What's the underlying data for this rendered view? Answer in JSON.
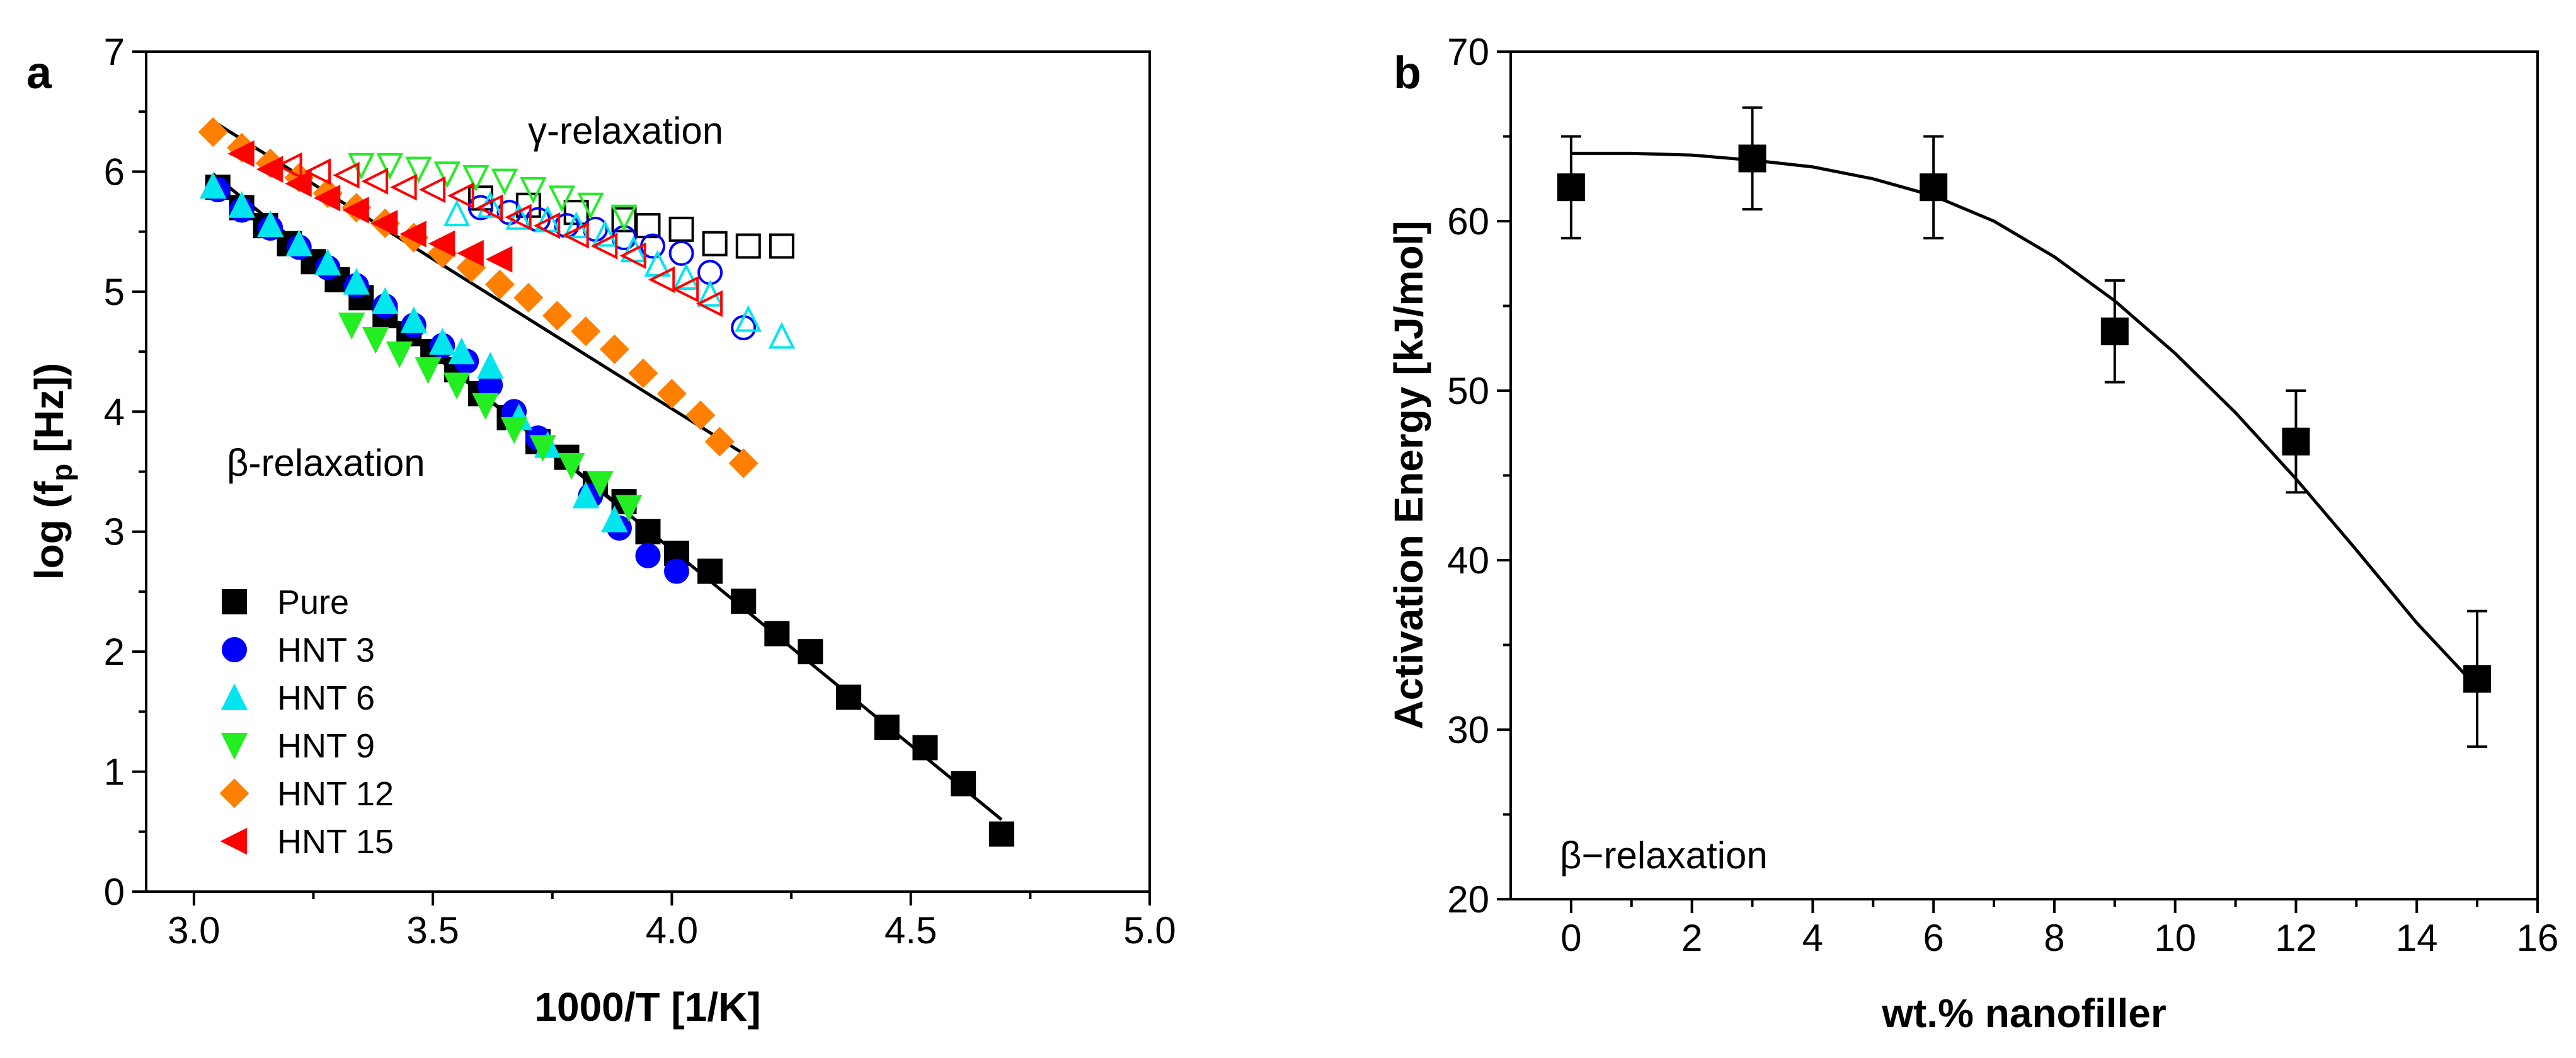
{
  "chart_data": [
    {
      "type": "scatter",
      "panel_label": "a",
      "xlabel": "1000/T [1/K]",
      "ylabel_prefix": "log (f",
      "ylabel_sub": "p",
      "ylabel_suffix": " [Hz])",
      "xlim": [
        2.9,
        5.0
      ],
      "ylim": [
        0,
        7
      ],
      "xticks": [
        "3.0",
        "3.5",
        "4.0",
        "4.5",
        "5.0"
      ],
      "yticks": [
        "0",
        "1",
        "2",
        "3",
        "4",
        "5",
        "6",
        "7"
      ],
      "annotations": {
        "gamma": "γ-relaxation",
        "beta": "β-relaxation"
      },
      "series": [
        {
          "name": "Pure",
          "color": "#000000",
          "marker": "square",
          "beta": [
            [
              3.05,
              5.87
            ],
            [
              3.1,
              5.7
            ],
            [
              3.15,
              5.55
            ],
            [
              3.2,
              5.4
            ],
            [
              3.25,
              5.25
            ],
            [
              3.3,
              5.1
            ],
            [
              3.35,
              4.95
            ],
            [
              3.4,
              4.8
            ],
            [
              3.45,
              4.65
            ],
            [
              3.5,
              4.5
            ],
            [
              3.55,
              4.35
            ],
            [
              3.6,
              4.15
            ],
            [
              3.66,
              3.95
            ],
            [
              3.72,
              3.75
            ],
            [
              3.78,
              3.62
            ],
            [
              3.84,
              3.4
            ],
            [
              3.9,
              3.25
            ],
            [
              3.95,
              3.0
            ],
            [
              4.01,
              2.82
            ],
            [
              4.08,
              2.67
            ],
            [
              4.15,
              2.42
            ],
            [
              4.22,
              2.15
            ],
            [
              4.29,
              2.0
            ],
            [
              4.37,
              1.62
            ],
            [
              4.45,
              1.37
            ],
            [
              4.53,
              1.2
            ],
            [
              4.61,
              0.9
            ],
            [
              4.69,
              0.48
            ]
          ],
          "gamma": [
            [
              3.6,
              5.78
            ],
            [
              3.7,
              5.72
            ],
            [
              3.8,
              5.66
            ],
            [
              3.9,
              5.6
            ],
            [
              3.95,
              5.55
            ],
            [
              4.02,
              5.52
            ],
            [
              4.09,
              5.4
            ],
            [
              4.16,
              5.38
            ],
            [
              4.23,
              5.38
            ]
          ]
        },
        {
          "name": "HNT 3",
          "color": "#0000ff",
          "marker": "circle",
          "beta": [
            [
              3.05,
              5.85
            ],
            [
              3.1,
              5.68
            ],
            [
              3.16,
              5.53
            ],
            [
              3.22,
              5.37
            ],
            [
              3.28,
              5.2
            ],
            [
              3.34,
              5.05
            ],
            [
              3.4,
              4.88
            ],
            [
              3.46,
              4.72
            ],
            [
              3.52,
              4.55
            ],
            [
              3.57,
              4.42
            ],
            [
              3.62,
              4.22
            ],
            [
              3.67,
              4.0
            ],
            [
              3.72,
              3.78
            ],
            [
              3.83,
              3.3
            ],
            [
              3.89,
              3.03
            ],
            [
              3.95,
              2.8
            ],
            [
              4.01,
              2.67
            ]
          ],
          "gamma": [
            [
              3.6,
              5.7
            ],
            [
              3.66,
              5.66
            ],
            [
              3.72,
              5.6
            ],
            [
              3.78,
              5.55
            ],
            [
              3.84,
              5.52
            ],
            [
              3.9,
              5.45
            ],
            [
              3.96,
              5.38
            ],
            [
              4.02,
              5.32
            ],
            [
              4.08,
              5.16
            ],
            [
              4.15,
              4.7
            ]
          ]
        },
        {
          "name": "HNT 6",
          "color": "#00e5ee",
          "marker": "triangle-up",
          "beta": [
            [
              3.04,
              5.88
            ],
            [
              3.1,
              5.72
            ],
            [
              3.16,
              5.56
            ],
            [
              3.22,
              5.4
            ],
            [
              3.28,
              5.24
            ],
            [
              3.34,
              5.08
            ],
            [
              3.4,
              4.92
            ],
            [
              3.46,
              4.76
            ],
            [
              3.52,
              4.58
            ],
            [
              3.56,
              4.5
            ],
            [
              3.62,
              4.38
            ],
            [
              3.68,
              3.95
            ],
            [
              3.74,
              3.72
            ],
            [
              3.82,
              3.3
            ],
            [
              3.88,
              3.1
            ]
          ],
          "gamma": [
            [
              3.55,
              5.65
            ],
            [
              3.62,
              5.72
            ],
            [
              3.68,
              5.62
            ],
            [
              3.74,
              5.6
            ],
            [
              3.8,
              5.55
            ],
            [
              3.86,
              5.48
            ],
            [
              3.92,
              5.35
            ],
            [
              3.97,
              5.23
            ],
            [
              4.03,
              5.12
            ],
            [
              4.08,
              4.98
            ],
            [
              4.16,
              4.77
            ],
            [
              4.23,
              4.63
            ]
          ]
        },
        {
          "name": "HNT 9",
          "color": "#22ee22",
          "marker": "triangle-down",
          "beta": [
            [
              3.33,
              4.72
            ],
            [
              3.38,
              4.6
            ],
            [
              3.43,
              4.48
            ],
            [
              3.49,
              4.35
            ],
            [
              3.55,
              4.22
            ],
            [
              3.61,
              4.05
            ],
            [
              3.67,
              3.85
            ],
            [
              3.73,
              3.7
            ],
            [
              3.79,
              3.55
            ],
            [
              3.85,
              3.4
            ],
            [
              3.91,
              3.2
            ]
          ],
          "gamma": [
            [
              3.35,
              6.05
            ],
            [
              3.41,
              6.05
            ],
            [
              3.47,
              6.02
            ],
            [
              3.53,
              5.98
            ],
            [
              3.59,
              5.95
            ],
            [
              3.65,
              5.92
            ],
            [
              3.71,
              5.85
            ],
            [
              3.77,
              5.78
            ],
            [
              3.83,
              5.72
            ],
            [
              3.9,
              5.62
            ]
          ]
        },
        {
          "name": "HNT 12",
          "color": "#ff7f00",
          "marker": "diamond",
          "beta": [
            [
              3.04,
              6.33
            ],
            [
              3.1,
              6.2
            ],
            [
              3.16,
              6.07
            ],
            [
              3.22,
              5.95
            ],
            [
              3.28,
              5.82
            ],
            [
              3.34,
              5.7
            ],
            [
              3.4,
              5.57
            ],
            [
              3.46,
              5.45
            ],
            [
              3.52,
              5.32
            ],
            [
              3.58,
              5.2
            ],
            [
              3.64,
              5.06
            ],
            [
              3.7,
              4.95
            ],
            [
              3.76,
              4.8
            ],
            [
              3.82,
              4.67
            ],
            [
              3.88,
              4.52
            ],
            [
              3.94,
              4.32
            ],
            [
              4.0,
              4.15
            ],
            [
              4.06,
              3.97
            ],
            [
              4.1,
              3.75
            ],
            [
              4.15,
              3.57
            ]
          ],
          "gamma": []
        },
        {
          "name": "HNT 15",
          "color": "#ff0000",
          "marker": "triangle-left",
          "beta": [
            [
              3.1,
              6.15
            ],
            [
              3.16,
              6.02
            ],
            [
              3.22,
              5.9
            ],
            [
              3.28,
              5.78
            ],
            [
              3.34,
              5.68
            ],
            [
              3.4,
              5.57
            ],
            [
              3.46,
              5.48
            ],
            [
              3.52,
              5.4
            ],
            [
              3.58,
              5.32
            ],
            [
              3.64,
              5.27
            ]
          ],
          "gamma": [
            [
              3.2,
              6.05
            ],
            [
              3.26,
              6.0
            ],
            [
              3.32,
              5.97
            ],
            [
              3.38,
              5.92
            ],
            [
              3.44,
              5.87
            ],
            [
              3.5,
              5.85
            ],
            [
              3.56,
              5.8
            ],
            [
              3.62,
              5.7
            ],
            [
              3.68,
              5.62
            ],
            [
              3.74,
              5.55
            ],
            [
              3.8,
              5.47
            ],
            [
              3.86,
              5.38
            ],
            [
              3.92,
              5.3
            ],
            [
              3.98,
              5.1
            ],
            [
              4.03,
              5.02
            ],
            [
              4.08,
              4.9
            ]
          ]
        }
      ],
      "fit_lines": [
        {
          "x": [
            3.04,
            4.69
          ],
          "y": [
            5.98,
            0.6
          ]
        },
        {
          "x": [
            3.04,
            3.88
          ],
          "y": [
            5.98,
            3.25
          ]
        },
        {
          "x": [
            3.04,
            4.15
          ],
          "y": [
            6.42,
            3.65
          ]
        }
      ]
    },
    {
      "type": "scatter",
      "panel_label": "b",
      "xlabel": "wt.% nanofiller",
      "ylabel": "Activation Energy [kJ/mol]",
      "xlim": [
        -1,
        16
      ],
      "ylim": [
        20,
        70
      ],
      "xticks": [
        "0",
        "2",
        "4",
        "6",
        "8",
        "10",
        "12",
        "14",
        "16"
      ],
      "yticks": [
        "20",
        "30",
        "40",
        "50",
        "60",
        "70"
      ],
      "annotation": "β−relaxation",
      "x": [
        0,
        3,
        6,
        9,
        12,
        15
      ],
      "values": [
        62,
        63.7,
        62,
        53.5,
        47,
        33
      ],
      "errors": [
        3,
        3,
        3,
        3,
        3,
        4
      ],
      "fit_curve": {
        "x": [
          0,
          1,
          2,
          3,
          4,
          5,
          6,
          7,
          8,
          9,
          10,
          11,
          12,
          13,
          14,
          15
        ],
        "y": [
          64,
          64,
          63.9,
          63.6,
          63.2,
          62.5,
          61.5,
          60.0,
          57.9,
          55.3,
          52.2,
          48.7,
          44.8,
          40.6,
          36.3,
          32.5
        ]
      }
    }
  ]
}
